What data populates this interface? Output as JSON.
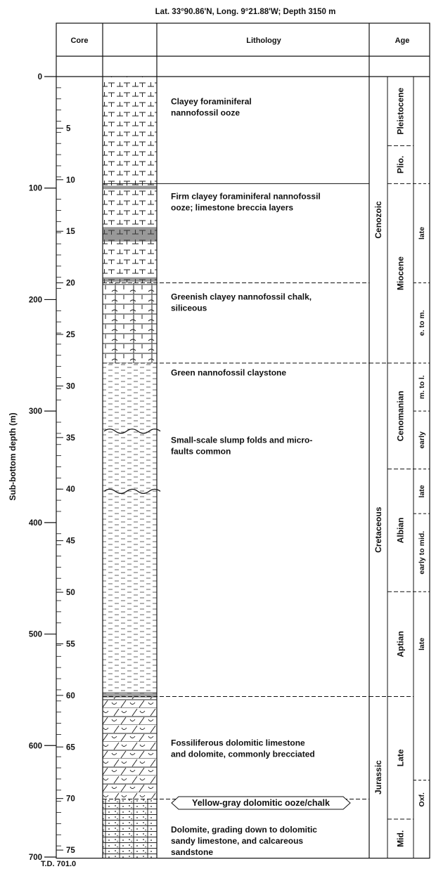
{
  "title": "Lat. 33°90.86'N, Long. 9°21.88'W; Depth 3150 m",
  "headers": {
    "core": "Core",
    "lithology": "Lithology",
    "age": "Age"
  },
  "y_axis": {
    "label": "Sub-bottom depth (m)",
    "ticks": [
      0,
      100,
      200,
      300,
      400,
      500,
      600,
      700
    ],
    "range": [
      0,
      700
    ]
  },
  "core_numbers": [
    5,
    10,
    15,
    20,
    25,
    30,
    35,
    40,
    45,
    50,
    55,
    60,
    65,
    70,
    75
  ],
  "total_depth": "T.D. 701.0",
  "lithology_units": [
    {
      "top": 0,
      "bottom": 96,
      "pattern": "forams",
      "boundary": "solid",
      "lines": [
        "Clayey foraminiferal",
        "nannofossil ooze"
      ]
    },
    {
      "top": 96,
      "bottom": 185,
      "pattern": "forams",
      "boundary": "dashed",
      "lines": [
        "Firm clayey foraminiferal nannofossil",
        "ooze; limestone breccia layers"
      ]
    },
    {
      "top": 185,
      "bottom": 257,
      "pattern": "chalk",
      "boundary": "dashed",
      "lines": [
        "Greenish clayey nannofossil chalk,",
        "siliceous"
      ]
    },
    {
      "top": 257,
      "bottom": 556,
      "pattern": "clay",
      "boundary": "dashed",
      "lines": [
        "Green nannofossil claystone",
        "",
        "",
        "",
        "",
        "",
        "Small-scale slump folds and micro-",
        "faults common"
      ]
    },
    {
      "top": 556,
      "bottom": 648,
      "pattern": "dolo",
      "boundary": "dashed",
      "lines": [
        "Fossiliferous dolomitic limestone",
        "and dolomite, commonly brecciated"
      ]
    },
    {
      "top": 648,
      "bottom": 701,
      "pattern": "sandy",
      "boundary": "none",
      "lines": [
        "Dolomite, grading down to dolomitic",
        "sandy limestone, and calcareous",
        "sandstone"
      ]
    }
  ],
  "callout": "Yellow-gray dolomitic ooze/chalk",
  "eras": [
    {
      "name": "Cenozoic",
      "top": 0,
      "bottom": 257
    },
    {
      "name": "Cretaceous",
      "top": 257,
      "bottom": 556
    },
    {
      "name": "Jurassic",
      "top": 556,
      "bottom": 701
    }
  ],
  "periods": [
    {
      "name": "Pleistocene",
      "top": 0,
      "bottom": 62
    },
    {
      "name": "Plio.",
      "top": 62,
      "bottom": 96
    },
    {
      "name": "Miocene",
      "top": 96,
      "bottom": 257
    },
    {
      "name": "Cenomanian",
      "top": 257,
      "bottom": 352
    },
    {
      "name": "Albian",
      "top": 352,
      "bottom": 462
    },
    {
      "name": "Aptian",
      "top": 462,
      "bottom": 556
    },
    {
      "name": "Late",
      "top": 556,
      "bottom": 666
    },
    {
      "name": "Mid.",
      "top": 666,
      "bottom": 701
    }
  ],
  "subdivisions": [
    {
      "name": "late",
      "top": 96,
      "bottom": 185
    },
    {
      "name": "e. to m.",
      "top": 185,
      "bottom": 257
    },
    {
      "name": "m. to l.",
      "top": 257,
      "bottom": 300
    },
    {
      "name": "early",
      "top": 300,
      "bottom": 352
    },
    {
      "name": "late",
      "top": 352,
      "bottom": 392
    },
    {
      "name": "early to mid.",
      "top": 392,
      "bottom": 462
    },
    {
      "name": "late",
      "top": 462,
      "bottom": 556
    },
    {
      "name": "Oxf.",
      "top": 631,
      "bottom": 666
    }
  ]
}
